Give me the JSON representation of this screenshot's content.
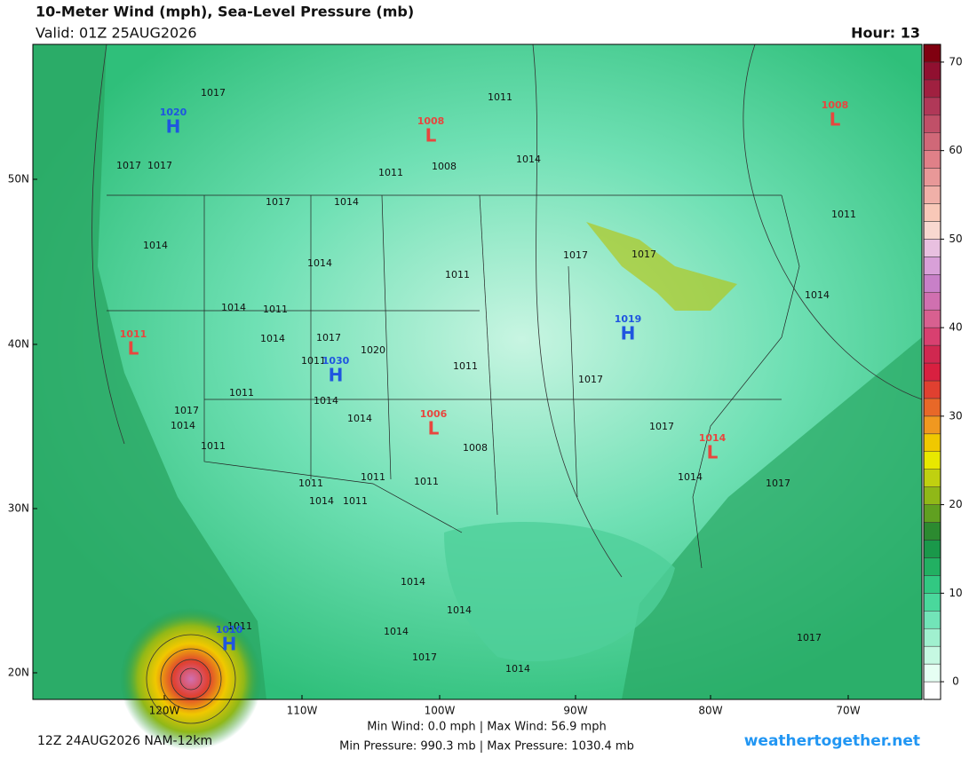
{
  "header": {
    "title": "10-Meter Wind (mph), Sea-Level Pressure (mb)",
    "valid": "Valid: 01Z 25AUG2026",
    "hour": "Hour: 13"
  },
  "map": {
    "lat_labels": [
      "50N",
      "40N",
      "30N",
      "20N"
    ],
    "lon_labels": [
      "120W",
      "110W",
      "100W",
      "90W",
      "80W",
      "70W"
    ],
    "pressure_labels": [
      "1017",
      "1011",
      "1017",
      "1017",
      "1011",
      "1008",
      "1014",
      "1017",
      "1014",
      "1014",
      "1014",
      "1011",
      "1017",
      "1017",
      "1014",
      "1014",
      "1011",
      "1014",
      "1017",
      "1020",
      "1011",
      "1011",
      "1017",
      "1011",
      "1014",
      "1017",
      "1014",
      "1014",
      "1017",
      "1011",
      "1008",
      "1011",
      "1011",
      "1011",
      "1014",
      "1011",
      "1014",
      "1017",
      "1014",
      "1014",
      "1011",
      "1014",
      "1017",
      "1014",
      "1017",
      "1011"
    ],
    "centers": [
      {
        "value": "1020",
        "type": "H"
      },
      {
        "value": "1008",
        "type": "L"
      },
      {
        "value": "1008",
        "type": "L"
      },
      {
        "value": "1011",
        "type": "L"
      },
      {
        "value": "1019",
        "type": "H"
      },
      {
        "value": "1030",
        "type": "H"
      },
      {
        "value": "1006",
        "type": "L"
      },
      {
        "value": "1014",
        "type": "L"
      },
      {
        "value": "1010",
        "type": "H"
      }
    ],
    "center_colors": {
      "H": "#1f55e0",
      "L": "#e8463e"
    }
  },
  "colorbar": {
    "lim": [
      -2,
      72
    ],
    "ticks": [
      0,
      10,
      20,
      30,
      40,
      50,
      60,
      70
    ],
    "colors": [
      "#ffffff",
      "#e6fff3",
      "#c6f8e2",
      "#a0f0cf",
      "#72e4b8",
      "#4ad89c",
      "#32c882",
      "#22b062",
      "#1a984a",
      "#2c8a30",
      "#60a020",
      "#90b818",
      "#c0d010",
      "#e8e800",
      "#f0c800",
      "#f09820",
      "#e86828",
      "#e04030",
      "#d82040",
      "#d02850",
      "#d84070",
      "#d86090",
      "#d070b0",
      "#c880c8",
      "#d8a0d8",
      "#e8c0e0",
      "#f8d8d0",
      "#f8c8b8",
      "#f0b0a8",
      "#e89898",
      "#e08088",
      "#d06878",
      "#c05068",
      "#b03858",
      "#a02040",
      "#901030",
      "#800010"
    ]
  },
  "footer": {
    "run": "12Z 24AUG2026 NAM-12km",
    "wind": "Min Wind:  0.0 mph | Max Wind:  56.9 mph",
    "pressure": "Min Pressure: 990.3 mb | Max Pressure: 1030.4 mb",
    "site": "weathertogether.net"
  }
}
